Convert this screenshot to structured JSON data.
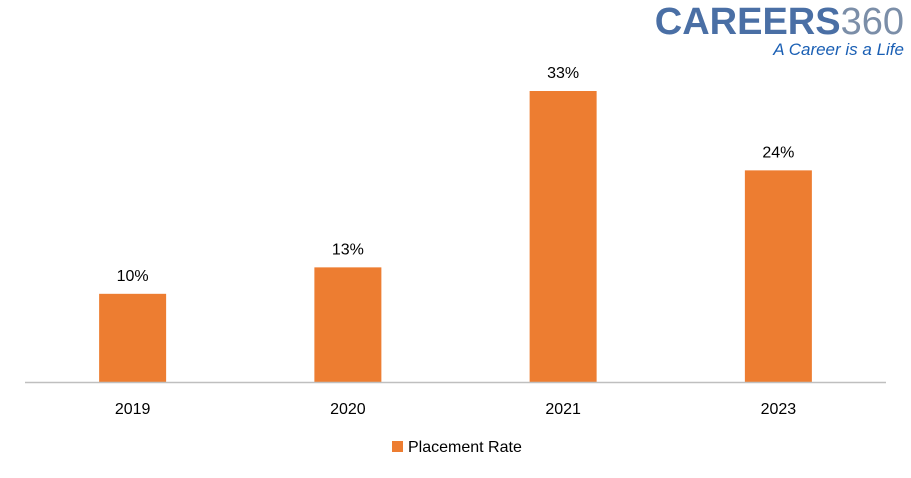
{
  "logo": {
    "brand": "CAREERS",
    "number": "360",
    "tagline": "A Career is a Life",
    "brand_color": "#4a6fa5",
    "number_color": "#7b8ea8",
    "tagline_color": "#1a5fb4"
  },
  "chart_data": {
    "type": "bar",
    "categories": [
      "2019",
      "2020",
      "2021",
      "2023"
    ],
    "series": [
      {
        "name": "Placement Rate",
        "values": [
          10,
          13,
          33,
          24
        ],
        "color": "#ed7d31"
      }
    ],
    "data_labels": [
      "10%",
      "13%",
      "33%",
      "24%"
    ],
    "title": "",
    "xlabel": "",
    "ylabel": "",
    "ylim": [
      0,
      33
    ],
    "grid": false,
    "y_axis_visible": false,
    "legend_position": "bottom",
    "label_color": "#000000",
    "axis_color": "#bfbfbf"
  }
}
